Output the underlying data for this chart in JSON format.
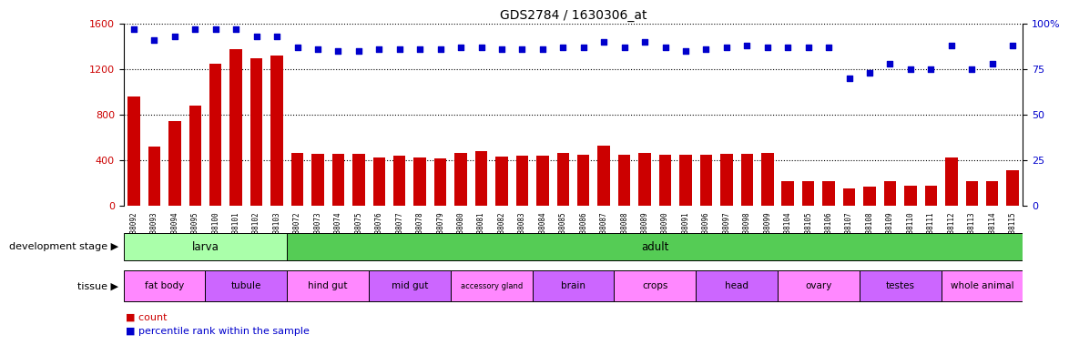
{
  "title": "GDS2784 / 1630306_at",
  "gsm_labels": [
    "GSM188092",
    "GSM188093",
    "GSM188094",
    "GSM188095",
    "GSM188100",
    "GSM188101",
    "GSM188102",
    "GSM188103",
    "GSM188072",
    "GSM188073",
    "GSM188074",
    "GSM188075",
    "GSM188076",
    "GSM188077",
    "GSM188078",
    "GSM188079",
    "GSM188080",
    "GSM188081",
    "GSM188082",
    "GSM188083",
    "GSM188084",
    "GSM188085",
    "GSM188086",
    "GSM188087",
    "GSM188088",
    "GSM188089",
    "GSM188090",
    "GSM188091",
    "GSM188096",
    "GSM188097",
    "GSM188098",
    "GSM188099",
    "GSM188104",
    "GSM188105",
    "GSM188106",
    "GSM188107",
    "GSM188108",
    "GSM188109",
    "GSM188110",
    "GSM188111",
    "GSM188112",
    "GSM188113",
    "GSM188114",
    "GSM188115"
  ],
  "counts": [
    960,
    520,
    740,
    880,
    1250,
    1380,
    1300,
    1320,
    460,
    455,
    455,
    455,
    420,
    435,
    420,
    415,
    460,
    475,
    430,
    435,
    435,
    460,
    450,
    530,
    450,
    460,
    445,
    445,
    445,
    455,
    455,
    460,
    215,
    215,
    215,
    150,
    170,
    215,
    175,
    175,
    420,
    215,
    215,
    310
  ],
  "percentile_ranks": [
    97,
    91,
    93,
    97,
    97,
    97,
    93,
    93,
    87,
    86,
    85,
    85,
    86,
    86,
    86,
    86,
    87,
    87,
    86,
    86,
    86,
    87,
    87,
    90,
    87,
    90,
    87,
    85,
    86,
    87,
    88,
    87,
    87,
    87,
    87,
    70,
    73,
    78,
    75,
    75,
    88,
    75,
    78,
    88
  ],
  "dev_stage_groups": [
    {
      "label": "larva",
      "start": 0,
      "end": 8
    },
    {
      "label": "adult",
      "start": 8,
      "end": 44
    }
  ],
  "tissue_groups": [
    {
      "label": "fat body",
      "start": 0,
      "end": 4,
      "color": "#ff88ff"
    },
    {
      "label": "tubule",
      "start": 4,
      "end": 8,
      "color": "#cc66ff"
    },
    {
      "label": "hind gut",
      "start": 8,
      "end": 12,
      "color": "#ff88ff"
    },
    {
      "label": "mid gut",
      "start": 12,
      "end": 16,
      "color": "#cc66ff"
    },
    {
      "label": "accessory gland",
      "start": 16,
      "end": 20,
      "color": "#ff88ff"
    },
    {
      "label": "brain",
      "start": 20,
      "end": 24,
      "color": "#cc66ff"
    },
    {
      "label": "crops",
      "start": 24,
      "end": 28,
      "color": "#ff88ff"
    },
    {
      "label": "head",
      "start": 28,
      "end": 32,
      "color": "#cc66ff"
    },
    {
      "label": "ovary",
      "start": 32,
      "end": 36,
      "color": "#ff88ff"
    },
    {
      "label": "testes",
      "start": 36,
      "end": 40,
      "color": "#cc66ff"
    },
    {
      "label": "whole animal",
      "start": 40,
      "end": 44,
      "color": "#ff88ff"
    }
  ],
  "bar_color": "#cc0000",
  "dot_color": "#0000cc",
  "dev_larva_color": "#aaffaa",
  "dev_adult_color": "#55cc55",
  "ylim_left": [
    0,
    1600
  ],
  "ylim_right": [
    0,
    100
  ],
  "yticks_left": [
    0,
    400,
    800,
    1200,
    1600
  ],
  "yticks_right": [
    0,
    25,
    50,
    75,
    100
  ],
  "background_color": "#ffffff"
}
